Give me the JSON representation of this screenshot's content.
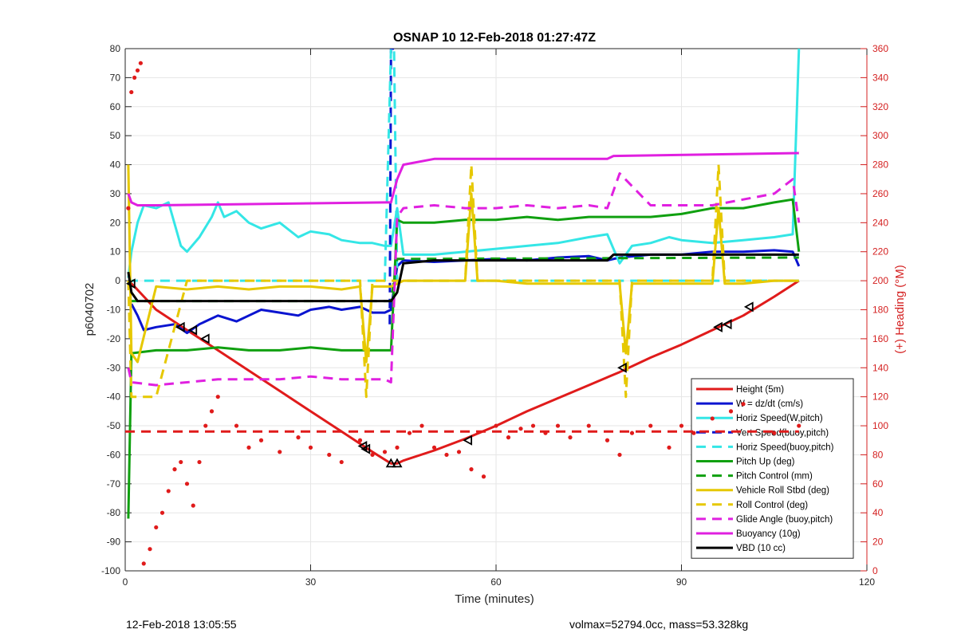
{
  "chart_data": {
    "type": "line",
    "title": "OSNAP 10 12-Feb-2018 01:27:47Z",
    "xlabel": "Time (minutes)",
    "ylabel": "p6040702",
    "y2label": "(+) Heading (°M)",
    "xlim": [
      0,
      120
    ],
    "ylim": [
      -100,
      80
    ],
    "y2lim": [
      0,
      360
    ],
    "xticks": [
      "0",
      "30",
      "60",
      "90",
      "120"
    ],
    "yticks": [
      "80",
      "70",
      "60",
      "50",
      "40",
      "30",
      "20",
      "10",
      "0",
      "-10",
      "-20",
      "-30",
      "-40",
      "-50",
      "-60",
      "-70",
      "-80",
      "-90",
      "-100"
    ],
    "y2ticks": [
      "360",
      "340",
      "320",
      "300",
      "280",
      "260",
      "240",
      "220",
      "200",
      "180",
      "160",
      "140",
      "120",
      "100",
      "80",
      "60",
      "40",
      "20",
      "0"
    ],
    "grid": true,
    "legend_position": "bottom-right",
    "colors": {
      "red": "#e01b1b",
      "blue": "#0a14d0",
      "cyan": "#34e6e6",
      "green": "#10a010",
      "yellow": "#e6c800",
      "magenta": "#e020e0",
      "black": "#000000",
      "right_axis": "#d42020"
    },
    "series": [
      {
        "name": "Height (5m)",
        "color": "#e01b1b",
        "style": "solid",
        "x": [
          0.5,
          1.5,
          5,
          10,
          15,
          20,
          25,
          30,
          35,
          40,
          43,
          44,
          45,
          50,
          55,
          60,
          65,
          70,
          75,
          80,
          85,
          90,
          95,
          100,
          105,
          109
        ],
        "y": [
          0,
          -2,
          -10,
          -17,
          -24,
          -31,
          -38,
          -45,
          -52,
          -59,
          -63,
          -63,
          -62,
          -58.5,
          -54.5,
          -50,
          -45,
          -40.5,
          -36,
          -31.5,
          -26.5,
          -22,
          -17,
          -12,
          -5.5,
          0
        ]
      },
      {
        "name": "W = dz/dt (cm/s)",
        "color": "#0a14d0",
        "style": "solid",
        "x": [
          1,
          2,
          3,
          5,
          8,
          10,
          12,
          15,
          18,
          20,
          22,
          25,
          28,
          30,
          33,
          35,
          38,
          40,
          42,
          43,
          44,
          45,
          50,
          55,
          60,
          65,
          70,
          75,
          78,
          80,
          85,
          90,
          95,
          100,
          105,
          108,
          109
        ],
        "y": [
          -8,
          -12,
          -17,
          -16,
          -15,
          -18,
          -15,
          -12,
          -14,
          -12,
          -10,
          -11,
          -12,
          -10,
          -9,
          -10,
          -9,
          -11,
          -11,
          -10,
          5,
          7,
          6.5,
          7,
          7.5,
          7,
          8,
          8.5,
          7,
          8,
          9,
          9,
          10,
          10,
          10.5,
          10,
          5
        ]
      },
      {
        "name": "Horiz Speed(W,pitch)",
        "color": "#34e6e6",
        "style": "solid",
        "x": [
          0.5,
          1,
          2,
          3,
          5,
          7,
          9,
          10,
          12,
          14,
          15,
          16,
          18,
          20,
          22,
          25,
          28,
          30,
          33,
          35,
          38,
          40,
          42,
          43,
          44,
          45,
          50,
          55,
          60,
          65,
          70,
          75,
          78,
          80,
          82,
          85,
          88,
          90,
          95,
          100,
          105,
          108,
          109
        ],
        "y": [
          1,
          10,
          20,
          26,
          25,
          27,
          12,
          10,
          15,
          22,
          27,
          22,
          24,
          20,
          18,
          20,
          15,
          17,
          16,
          14,
          13,
          13,
          12,
          12,
          25,
          9,
          9,
          10,
          11,
          12,
          13,
          15,
          16,
          6,
          12,
          13,
          15,
          14,
          13,
          14,
          15,
          16,
          80
        ]
      },
      {
        "name": "Vert Speed(buoy,pitch)",
        "color": "#0a14d0",
        "style": "dashed",
        "x": [
          42.8,
          43,
          43.5
        ],
        "y": [
          -15,
          80,
          80
        ]
      },
      {
        "name": "Horiz Speed(buoy,pitch)",
        "color": "#34e6e6",
        "style": "dashed",
        "x": [
          0.5,
          42,
          43,
          43.5,
          44,
          109
        ],
        "y": [
          0,
          0,
          80,
          80,
          0,
          0
        ]
      },
      {
        "name": "Pitch Up (deg)",
        "color": "#10a010",
        "style": "solid",
        "x": [
          0.5,
          1,
          5,
          10,
          15,
          20,
          25,
          30,
          35,
          40,
          43,
          44,
          45,
          50,
          55,
          60,
          65,
          70,
          75,
          80,
          85,
          90,
          95,
          100,
          105,
          108,
          109
        ],
        "y": [
          -82,
          -25,
          -24,
          -24,
          -23,
          -24,
          -24,
          -23,
          -24,
          -24,
          -24,
          21,
          20,
          20,
          21,
          21,
          22,
          21,
          22,
          22,
          22,
          23,
          25,
          25,
          27,
          28,
          10
        ]
      },
      {
        "name": "Pitch Control (mm)",
        "color": "#10a010",
        "style": "dashed",
        "x": [
          0.5,
          43,
          44,
          109
        ],
        "y": [
          -7,
          -7,
          7.5,
          8
        ]
      },
      {
        "name": "Vehicle Roll Stbd (deg)",
        "color": "#e6c800",
        "style": "solid",
        "x": [
          0.5,
          1,
          2,
          5,
          10,
          15,
          20,
          25,
          30,
          35,
          38,
          39,
          40,
          43,
          45,
          50,
          55,
          56,
          57,
          60,
          65,
          70,
          75,
          80,
          81,
          82,
          85,
          90,
          95,
          96,
          97,
          100,
          105,
          109
        ],
        "y": [
          40,
          -25,
          -28,
          -2,
          -3,
          -2,
          -3,
          -2,
          -2,
          -3,
          -2,
          -28,
          -2,
          -2,
          0,
          0,
          0,
          30,
          0,
          0,
          -1,
          -1,
          -1,
          -1,
          -25,
          -1,
          -1,
          -1,
          -1,
          25,
          -1,
          -1,
          0,
          0
        ]
      },
      {
        "name": "Roll Control (deg)",
        "color": "#e6c800",
        "style": "dashed",
        "x": [
          0.5,
          1,
          5,
          10,
          15,
          20,
          38,
          39,
          40,
          43,
          44,
          55,
          56,
          57,
          80,
          81,
          82,
          95,
          96,
          97,
          100,
          105,
          109
        ],
        "y": [
          0,
          -40,
          -40,
          0,
          0,
          0,
          0,
          -40,
          0,
          0,
          0,
          0,
          40,
          0,
          0,
          -40,
          0,
          0,
          40,
          0,
          0,
          0,
          0
        ]
      },
      {
        "name": "Glide Angle (buoy,pitch)",
        "color": "#e020e0",
        "style": "dashed",
        "x": [
          0.5,
          1,
          5,
          10,
          15,
          20,
          25,
          30,
          35,
          40,
          42,
          43,
          44,
          45,
          50,
          55,
          60,
          65,
          70,
          75,
          78,
          80,
          85,
          90,
          95,
          100,
          105,
          108,
          109
        ],
        "y": [
          -30,
          -35,
          -36,
          -35,
          -34,
          -34,
          -34,
          -33,
          -34,
          -34,
          -34,
          -35,
          22,
          25,
          26,
          25,
          25,
          26,
          25,
          26,
          25,
          37,
          26,
          26,
          26,
          28,
          30,
          35,
          20
        ]
      },
      {
        "name": "Buoyancy (10g)",
        "color": "#e020e0",
        "style": "solid",
        "x": [
          0.5,
          1,
          2,
          5,
          42,
          43,
          44,
          45,
          50,
          78,
          79,
          109
        ],
        "y": [
          30,
          27,
          26,
          26,
          27,
          27,
          35,
          40,
          42,
          42,
          43,
          44
        ]
      },
      {
        "name": "VBD (10 cc)",
        "color": "#000000",
        "style": "solid",
        "x": [
          0.5,
          1,
          2,
          5,
          42,
          43,
          44,
          45,
          50,
          78,
          79,
          109
        ],
        "y": [
          3,
          -4,
          -7,
          -7,
          -7,
          -7,
          -4,
          6,
          7,
          7,
          9,
          9
        ]
      },
      {
        "name": "Heading",
        "color": "#e01b1b",
        "style": "dotted",
        "axis": "right",
        "x": [
          0.5,
          1,
          1.5,
          2,
          2.5,
          3,
          4,
          5,
          6,
          7,
          8,
          9,
          10,
          11,
          12,
          13,
          14,
          15,
          18,
          20,
          22,
          25,
          28,
          30,
          33,
          35,
          38,
          40,
          42,
          44,
          46,
          48,
          50,
          52,
          54,
          56,
          58,
          60,
          62,
          64,
          66,
          68,
          70,
          72,
          75,
          78,
          80,
          82,
          85,
          88,
          90,
          92,
          95,
          98,
          100,
          105,
          109
        ],
        "y": [
          250,
          330,
          340,
          345,
          350,
          5,
          15,
          30,
          40,
          55,
          70,
          75,
          60,
          45,
          75,
          100,
          110,
          120,
          100,
          85,
          90,
          82,
          92,
          85,
          80,
          75,
          90,
          80,
          82,
          85,
          95,
          100,
          85,
          80,
          82,
          70,
          65,
          100,
          92,
          98,
          100,
          95,
          100,
          92,
          100,
          90,
          80,
          95,
          100,
          85,
          100,
          95,
          105,
          110,
          115,
          95,
          100
        ]
      },
      {
        "name": "Heading reference",
        "color": "#e01b1b",
        "style": "dashed",
        "axis": "right",
        "x": [
          0,
          109
        ],
        "y": [
          96,
          96
        ]
      }
    ],
    "legend": [
      {
        "label": "Height (5m)",
        "color": "#e01b1b",
        "style": "solid"
      },
      {
        "label": "W = dz/dt (cm/s)",
        "color": "#0a14d0",
        "style": "solid"
      },
      {
        "label": "Horiz Speed(W,pitch)",
        "color": "#34e6e6",
        "style": "solid"
      },
      {
        "label": "Vert Speed(buoy,pitch)",
        "color": "#0a14d0",
        "style": "dashed"
      },
      {
        "label": "Horiz Speed(buoy,pitch)",
        "color": "#34e6e6",
        "style": "dashed"
      },
      {
        "label": "Pitch Up (deg)",
        "color": "#10a010",
        "style": "solid"
      },
      {
        "label": "Pitch Control (mm)",
        "color": "#10a010",
        "style": "dashed"
      },
      {
        "label": "Vehicle Roll Stbd (deg)",
        "color": "#e6c800",
        "style": "solid"
      },
      {
        "label": "Roll Control (deg)",
        "color": "#e6c800",
        "style": "dashed"
      },
      {
        "label": "Glide Angle (buoy,pitch)",
        "color": "#e020e0",
        "style": "dashed"
      },
      {
        "label": "Buoyancy (10g)",
        "color": "#e020e0",
        "style": "solid"
      },
      {
        "label": "VBD (10 cc)",
        "color": "#000000",
        "style": "solid"
      }
    ],
    "markers": {
      "triangle_left": {
        "x": [
          1,
          9,
          11,
          13,
          38.5,
          39,
          55.5,
          80.5,
          96,
          97.5,
          101
        ],
        "y": [
          -1,
          -16,
          -17,
          -20,
          -57,
          -58,
          -55,
          -30,
          -16,
          -15,
          -9
        ]
      },
      "triangle_up": {
        "x": [
          43,
          44
        ],
        "y": [
          -63,
          -63
        ]
      }
    }
  },
  "footer": {
    "left": "12-Feb-2018 13:05:55",
    "right": "volmax=52794.0cc, mass=53.328kg"
  }
}
